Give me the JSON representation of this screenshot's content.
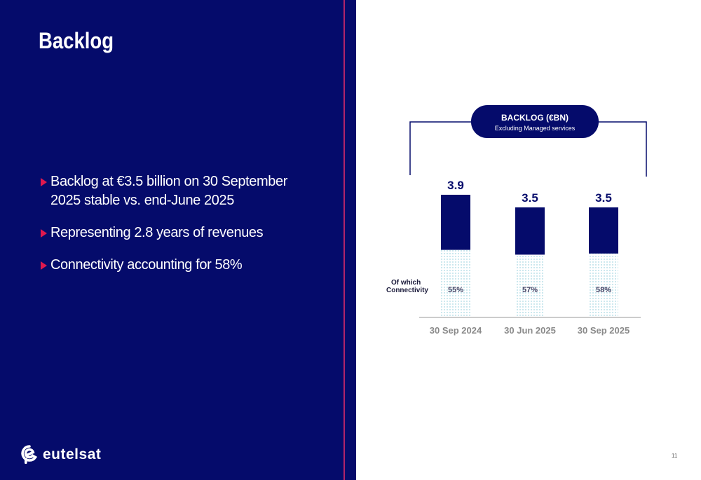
{
  "page": {
    "title": "Backlog",
    "page_number": "11",
    "logo_text": "eutelsat",
    "logo_icon": "eutelsat-logo-icon",
    "colors": {
      "navy": "#050b6b",
      "accent": "#e0194e",
      "divider": "#b0246a",
      "connectivity_fill": "#bfe6ee"
    }
  },
  "bullets": [
    {
      "text": "Backlog at €3.5 billion on 30 September 2025 stable vs. end-June 2025"
    },
    {
      "text": "Representing 2.8 years of revenues"
    },
    {
      "text": "Connectivity accounting for 58%"
    }
  ],
  "chart_data": {
    "type": "bar",
    "title": "BACKLOG (€BN)",
    "subtitle": "Excluding Managed services",
    "categories": [
      "30 Sep 2024",
      "30 Jun 2025",
      "30 Sep 2025"
    ],
    "values": [
      3.9,
      3.5,
      3.5
    ],
    "value_labels": [
      "3.9",
      "3.5",
      "3.5"
    ],
    "connectivity_share": [
      0.55,
      0.57,
      0.58
    ],
    "connectivity_labels": [
      "55%",
      "57%",
      "58%"
    ],
    "connectivity_label": "Of which Connectivity",
    "ylim": [
      0,
      4.3
    ],
    "grid": false,
    "legend": "none"
  }
}
